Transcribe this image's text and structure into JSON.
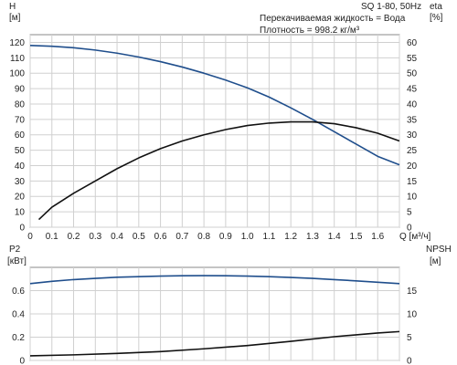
{
  "chart_data": [
    {
      "type": "line",
      "title": "SQ 1-80, 50Hz",
      "xlabel": "Q [м³/ч]",
      "x_ticks": [
        "0",
        "0.1",
        "0.2",
        "0.3",
        "0.4",
        "0.5",
        "0.6",
        "0.7",
        "0.8",
        "0.9",
        "1.0",
        "1.1",
        "1.2",
        "1.3",
        "1.4",
        "1.5",
        "1.6"
      ],
      "xlim": [
        0,
        1.7
      ],
      "left_axis": {
        "label_top": "H",
        "label_unit": "[м]",
        "lim": [
          0,
          125
        ],
        "ticks": [
          0,
          10,
          20,
          30,
          40,
          50,
          60,
          70,
          80,
          90,
          100,
          110,
          120
        ]
      },
      "right_axis": {
        "label_top": "eta",
        "label_unit": "[%]",
        "lim": [
          0,
          62.5
        ],
        "ticks": [
          0,
          5,
          10,
          15,
          20,
          25,
          30,
          35,
          40,
          45,
          50,
          55,
          60
        ]
      },
      "annotation": [
        "Перекачиваемая жидкость = Вода",
        "Плотность = 998.2 кг/м³"
      ],
      "grid": true,
      "series": [
        {
          "axis": "left",
          "color": "#1f4e8c",
          "x": [
            0,
            0.1,
            0.2,
            0.3,
            0.4,
            0.5,
            0.6,
            0.7,
            0.8,
            0.9,
            1.0,
            1.1,
            1.2,
            1.3,
            1.4,
            1.5,
            1.6,
            1.7
          ],
          "y": [
            118,
            117.5,
            116.5,
            115,
            113,
            110.5,
            107.5,
            104,
            100,
            95.5,
            90.5,
            84.5,
            77.5,
            70,
            62,
            54,
            46,
            40.5
          ]
        },
        {
          "axis": "right",
          "color": "#111111",
          "x": [
            0.04,
            0.1,
            0.2,
            0.3,
            0.4,
            0.5,
            0.6,
            0.7,
            0.8,
            0.9,
            1.0,
            1.1,
            1.2,
            1.3,
            1.4,
            1.5,
            1.6,
            1.7
          ],
          "y": [
            2.5,
            6.5,
            11,
            15,
            19,
            22.5,
            25.5,
            28,
            30,
            31.7,
            33,
            33.8,
            34.2,
            34.2,
            33.6,
            32.3,
            30.5,
            28
          ]
        }
      ]
    },
    {
      "type": "line",
      "xlim": [
        0,
        1.7
      ],
      "left_axis": {
        "label_top": "P2",
        "label_unit": "[кВт]",
        "lim": [
          0,
          0.8
        ],
        "ticks": [
          0,
          0.2,
          0.4,
          0.6
        ]
      },
      "right_axis": {
        "label_top": "NPSH",
        "label_unit": "[м]",
        "lim": [
          0,
          20
        ],
        "ticks": [
          0,
          5,
          10,
          15
        ]
      },
      "grid": true,
      "series": [
        {
          "axis": "left",
          "color": "#1f4e8c",
          "x": [
            0,
            0.1,
            0.2,
            0.3,
            0.4,
            0.5,
            0.6,
            0.7,
            0.8,
            0.9,
            1.0,
            1.1,
            1.2,
            1.3,
            1.4,
            1.5,
            1.6,
            1.7
          ],
          "y": [
            0.66,
            0.68,
            0.695,
            0.705,
            0.715,
            0.72,
            0.725,
            0.728,
            0.729,
            0.728,
            0.725,
            0.72,
            0.713,
            0.705,
            0.695,
            0.684,
            0.672,
            0.66
          ]
        },
        {
          "axis": "right",
          "color": "#111111",
          "x": [
            0,
            0.2,
            0.4,
            0.6,
            0.8,
            1.0,
            1.2,
            1.4,
            1.6,
            1.7
          ],
          "y": [
            1.0,
            1.2,
            1.5,
            1.9,
            2.5,
            3.2,
            4.1,
            5.1,
            5.9,
            6.2
          ]
        }
      ]
    }
  ]
}
